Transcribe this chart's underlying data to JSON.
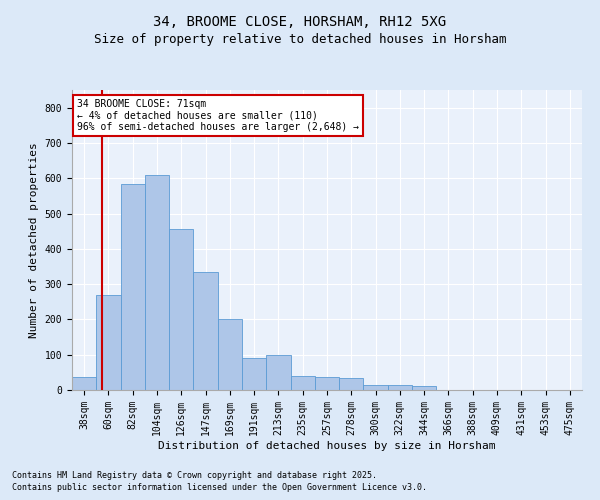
{
  "title1": "34, BROOME CLOSE, HORSHAM, RH12 5XG",
  "title2": "Size of property relative to detached houses in Horsham",
  "xlabel": "Distribution of detached houses by size in Horsham",
  "ylabel": "Number of detached properties",
  "categories": [
    "38sqm",
    "60sqm",
    "82sqm",
    "104sqm",
    "126sqm",
    "147sqm",
    "169sqm",
    "191sqm",
    "213sqm",
    "235sqm",
    "257sqm",
    "278sqm",
    "300sqm",
    "322sqm",
    "344sqm",
    "366sqm",
    "388sqm",
    "409sqm",
    "431sqm",
    "453sqm",
    "475sqm"
  ],
  "values": [
    38,
    268,
    585,
    610,
    457,
    335,
    200,
    92,
    100,
    40,
    38,
    33,
    13,
    13,
    10,
    0,
    0,
    0,
    0,
    0,
    0
  ],
  "bar_color": "#aec6e8",
  "bar_edge_color": "#5b9bd5",
  "vline_color": "#cc0000",
  "vline_x": 0.73,
  "annotation_text": "34 BROOME CLOSE: 71sqm\n← 4% of detached houses are smaller (110)\n96% of semi-detached houses are larger (2,648) →",
  "annotation_box_color": "#ffffff",
  "annotation_box_edge": "#cc0000",
  "ylim": [
    0,
    850
  ],
  "yticks": [
    0,
    100,
    200,
    300,
    400,
    500,
    600,
    700,
    800
  ],
  "footer1": "Contains HM Land Registry data © Crown copyright and database right 2025.",
  "footer2": "Contains public sector information licensed under the Open Government Licence v3.0.",
  "bg_color": "#dce9f8",
  "plot_bg_color": "#eaf1fb",
  "grid_color": "#ffffff",
  "title_fontsize": 10,
  "subtitle_fontsize": 9,
  "axis_label_fontsize": 8,
  "tick_fontsize": 7,
  "annotation_fontsize": 7,
  "footer_fontsize": 6
}
